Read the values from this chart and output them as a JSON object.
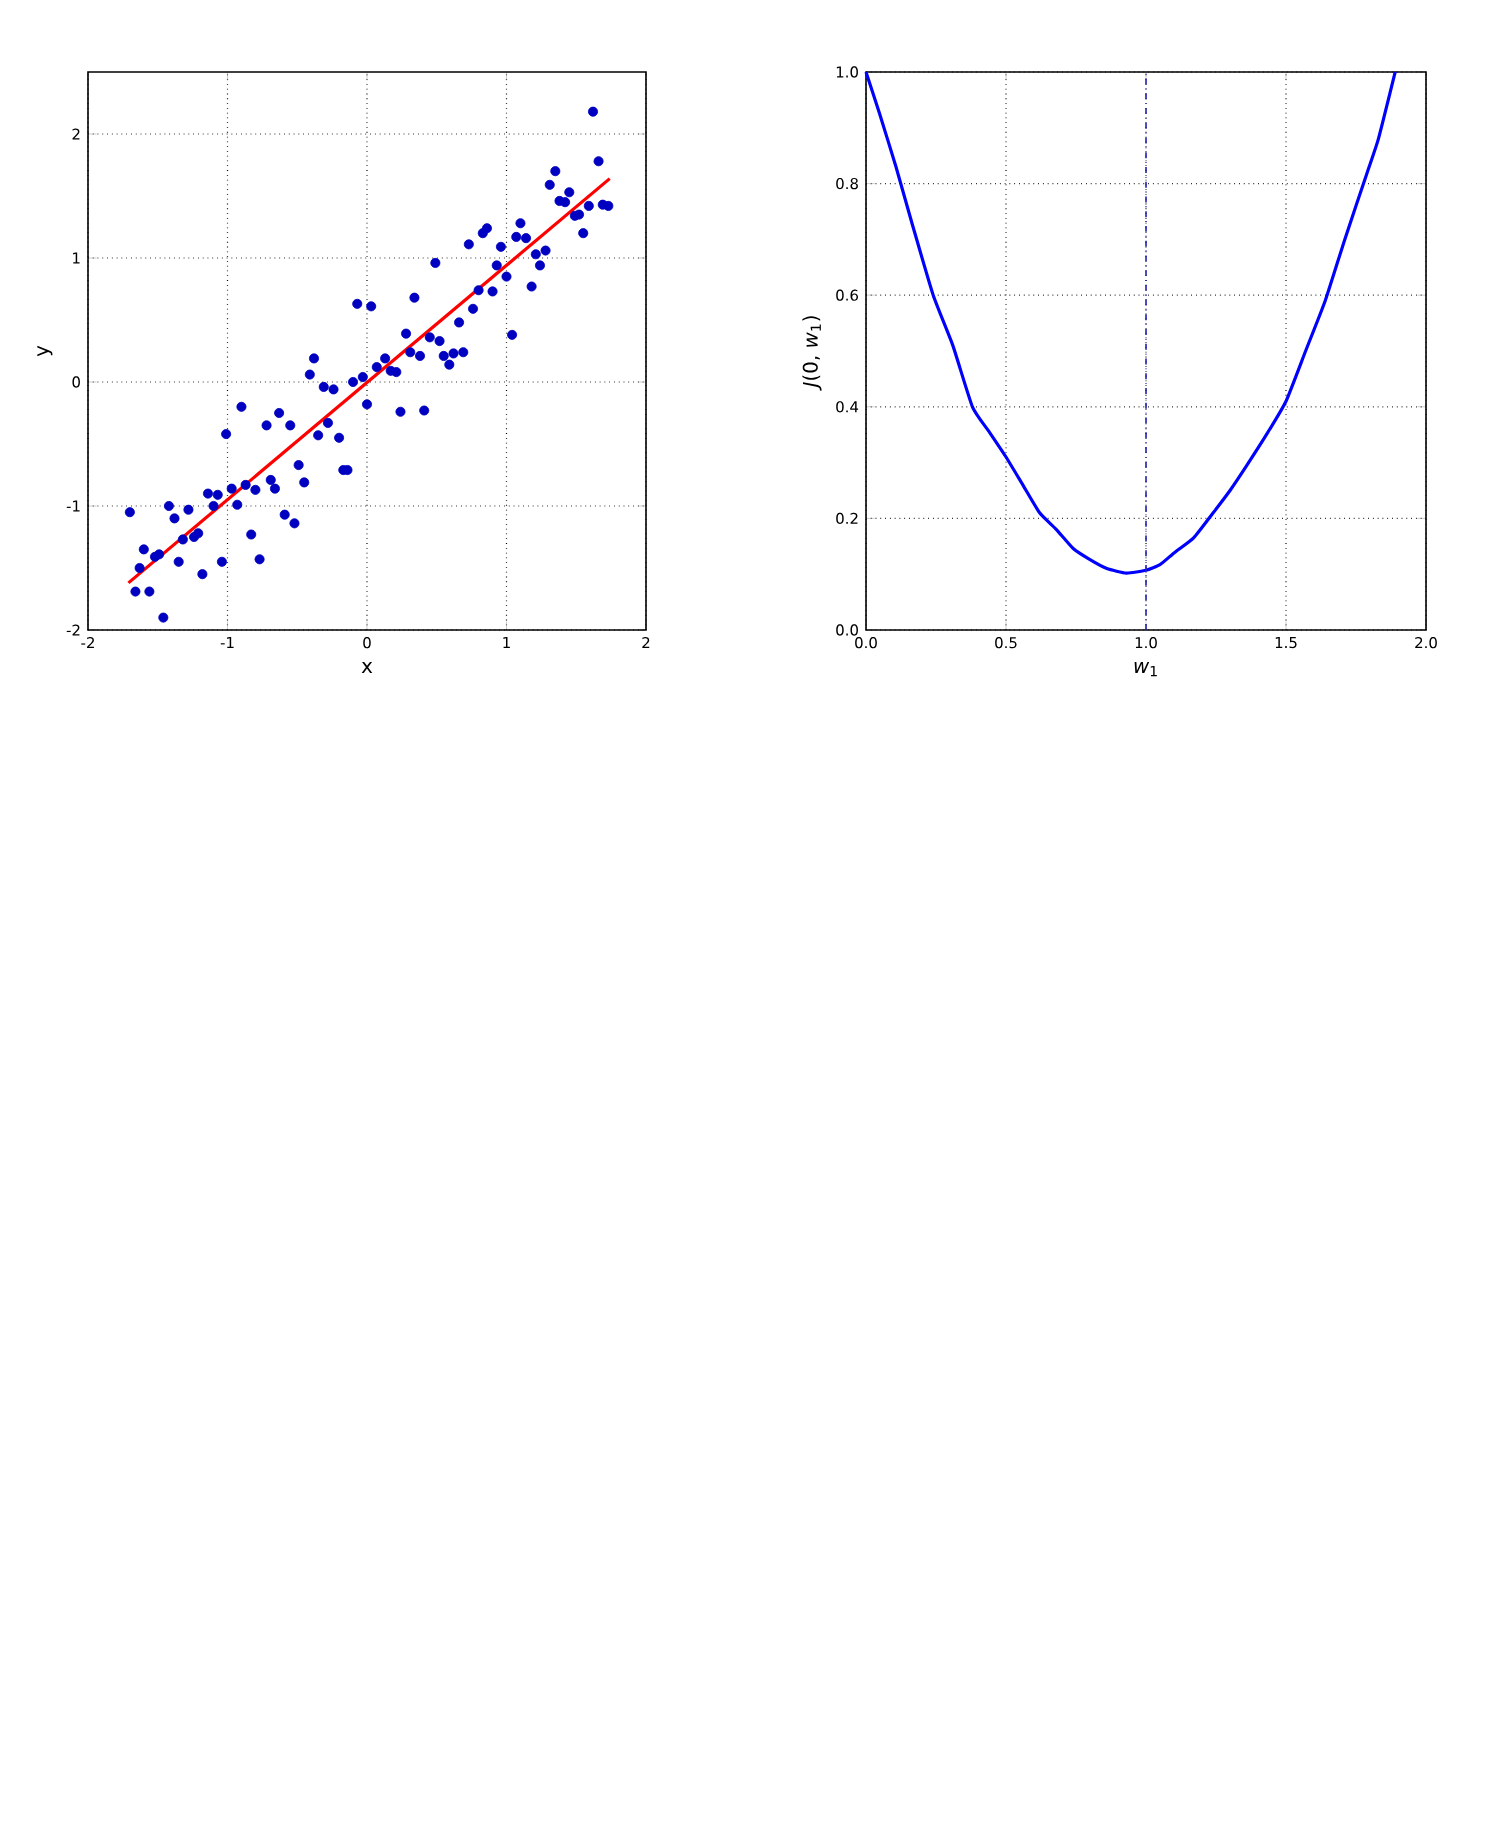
{
  "chart_data": [
    {
      "type": "scatter",
      "xlabel": "x",
      "ylabel": "y",
      "xlim": [
        -2,
        2
      ],
      "ylim": [
        -2,
        2.5
      ],
      "xticks": [
        -2,
        -1,
        0,
        1,
        2
      ],
      "yticks": [
        -2,
        -1,
        0,
        1,
        2
      ],
      "grid": true,
      "series": [
        {
          "color": "#0000c0",
          "marker": "circle",
          "x": [
            -1.7,
            -1.66,
            -1.63,
            -1.6,
            -1.56,
            -1.52,
            -1.49,
            -1.46,
            -1.42,
            -1.38,
            -1.35,
            -1.32,
            -1.28,
            -1.24,
            -1.21,
            -1.18,
            -1.14,
            -1.1,
            -1.07,
            -1.04,
            -1.01,
            -0.97,
            -0.93,
            -0.9,
            -0.87,
            -0.83,
            -0.8,
            -0.77,
            -0.72,
            -0.69,
            -0.66,
            -0.63,
            -0.59,
            -0.55,
            -0.52,
            -0.49,
            -0.45,
            -0.41,
            -0.38,
            -0.35,
            -0.31,
            -0.28,
            -0.24,
            -0.2,
            -0.17,
            -0.14,
            -0.1,
            -0.07,
            -0.03,
            0.0,
            0.03,
            0.07,
            0.13,
            0.17,
            0.21,
            0.24,
            0.28,
            0.31,
            0.34,
            0.38,
            0.41,
            0.45,
            0.49,
            0.52,
            0.55,
            0.59,
            0.62,
            0.66,
            0.69,
            0.73,
            0.76,
            0.8,
            0.83,
            0.86,
            0.9,
            0.93,
            0.96,
            1.0,
            1.04,
            1.07,
            1.1,
            1.14,
            1.18,
            1.21,
            1.24,
            1.28,
            1.31,
            1.35,
            1.38,
            1.42,
            1.45,
            1.49,
            1.52,
            1.55,
            1.59,
            1.62,
            1.66,
            1.69,
            1.73
          ],
          "values": [
            -1.05,
            -1.69,
            -1.5,
            -1.35,
            -1.69,
            -1.41,
            -1.39,
            -1.9,
            -1.0,
            -1.1,
            -1.45,
            -1.27,
            -1.03,
            -1.25,
            -1.22,
            -1.55,
            -0.9,
            -1.0,
            -0.91,
            -1.45,
            -0.42,
            -0.86,
            -0.99,
            -0.2,
            -0.83,
            -1.23,
            -0.87,
            -1.43,
            -0.35,
            -0.79,
            -0.86,
            -0.25,
            -1.07,
            -0.35,
            -1.14,
            -0.67,
            -0.81,
            0.06,
            0.19,
            -0.43,
            -0.04,
            -0.33,
            -0.06,
            -0.45,
            -0.71,
            -0.71,
            0.0,
            0.63,
            0.04,
            -0.18,
            0.61,
            0.12,
            0.19,
            0.09,
            0.08,
            -0.24,
            0.39,
            0.24,
            0.68,
            0.21,
            -0.23,
            0.36,
            0.96,
            0.33,
            0.21,
            0.14,
            0.23,
            0.48,
            0.24,
            1.11,
            0.59,
            0.74,
            1.2,
            1.24,
            0.73,
            0.94,
            1.09,
            0.85,
            0.38,
            1.17,
            1.28,
            1.16,
            0.77,
            1.03,
            0.94,
            1.06,
            1.59,
            1.7,
            1.46,
            1.45,
            1.53,
            1.34,
            1.35,
            1.2,
            1.42,
            2.18,
            1.78,
            1.43,
            1.42
          ]
        },
        {
          "type": "line",
          "color": "#ff0000",
          "x": [
            -1.71,
            1.74
          ],
          "values": [
            -1.62,
            1.64
          ]
        }
      ]
    },
    {
      "type": "line",
      "xlabel": "*w*$_{1}$",
      "ylabel": "*J*(0, *w*$_{1}$)",
      "xlim": [
        0,
        2
      ],
      "ylim": [
        0,
        1
      ],
      "xticks": [
        {
          "value": 0,
          "label": "0.0"
        },
        {
          "value": 0.5,
          "label": "0.5"
        },
        {
          "value": 1,
          "label": "1.0"
        },
        {
          "value": 1.5,
          "label": "1.5"
        },
        {
          "value": 2,
          "label": "2.0"
        }
      ],
      "yticks": [
        {
          "value": 0,
          "label": "0.0"
        },
        {
          "value": 0.2,
          "label": "0.2"
        },
        {
          "value": 0.4,
          "label": "0.4"
        },
        {
          "value": 0.6,
          "label": "0.6"
        },
        {
          "value": 0.8,
          "label": "0.8"
        },
        {
          "value": 1,
          "label": "1.0"
        }
      ],
      "grid": true,
      "ref_lines": [
        {
          "axis": "x",
          "value": 1,
          "color": "#2222aa",
          "line_style": "dashdot"
        }
      ],
      "series": [
        {
          "color": "#0000ff",
          "x": [
            0,
            0.048,
            0.107,
            0.167,
            0.24,
            0.31,
            0.38,
            0.44,
            0.5,
            0.56,
            0.62,
            0.68,
            0.74,
            0.8,
            0.86,
            0.93,
            1.0,
            1.05,
            1.1,
            1.17,
            1.24,
            1.3,
            1.36,
            1.43,
            1.5,
            1.57,
            1.64,
            1.71,
            1.79,
            1.83,
            1.89
          ],
          "values": [
            1.0,
            0.926,
            0.83,
            0.724,
            0.6,
            0.51,
            0.4,
            0.355,
            0.31,
            0.26,
            0.21,
            0.18,
            0.146,
            0.126,
            0.11,
            0.102,
            0.107,
            0.117,
            0.138,
            0.165,
            0.21,
            0.25,
            0.295,
            0.35,
            0.41,
            0.5,
            0.59,
            0.7,
            0.82,
            0.88,
            1.0
          ]
        }
      ]
    }
  ]
}
